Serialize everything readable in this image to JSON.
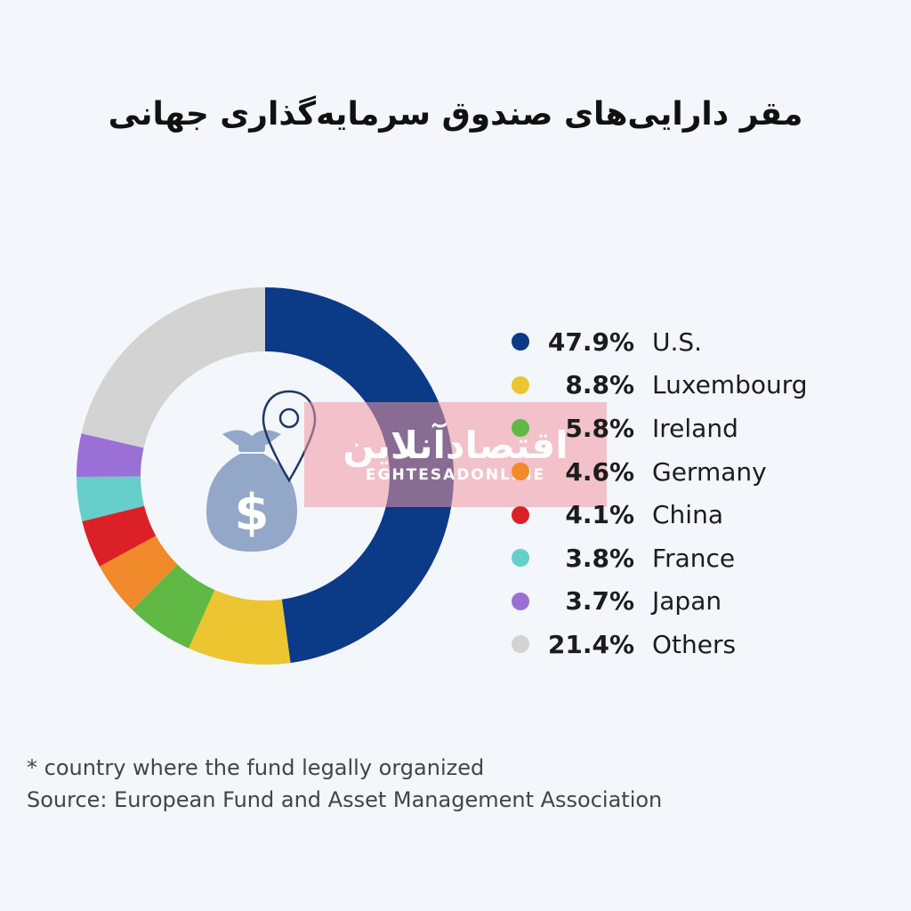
{
  "title": "مقر دارایی‌های صندوق سرمایه‌گذاری جهانی",
  "chart_data": {
    "type": "pie",
    "categories": [
      "U.S.",
      "Luxembourg",
      "Ireland",
      "Germany",
      "China",
      "France",
      "Japan",
      "Others"
    ],
    "values": [
      47.9,
      8.8,
      5.8,
      4.6,
      4.1,
      3.8,
      3.7,
      21.4
    ],
    "value_labels": [
      "47.9%",
      "8.8%",
      "5.8%",
      "4.6%",
      "4.1%",
      "3.8%",
      "3.7%",
      "21.4%"
    ],
    "colors": [
      "#0b3a86",
      "#ecc531",
      "#5fb944",
      "#f08a2a",
      "#db2127",
      "#66cfcc",
      "#9b70d6",
      "#d3d3d3"
    ],
    "legend_position": "right",
    "hole": "donut"
  },
  "footnote": {
    "note": "* country where the fund legally organized",
    "source": "Source: European Fund and Asset Management Association"
  },
  "watermark": {
    "text": "اقتصادآنلاین",
    "subtext": "EGHTESADONLINE"
  },
  "icons": {
    "center": "money-bag-icon",
    "pin": "location-pin-icon"
  },
  "colors": {
    "icon_bag": "#93a7c9",
    "icon_pin": "#1e3766",
    "background": "#f3f6fa"
  }
}
